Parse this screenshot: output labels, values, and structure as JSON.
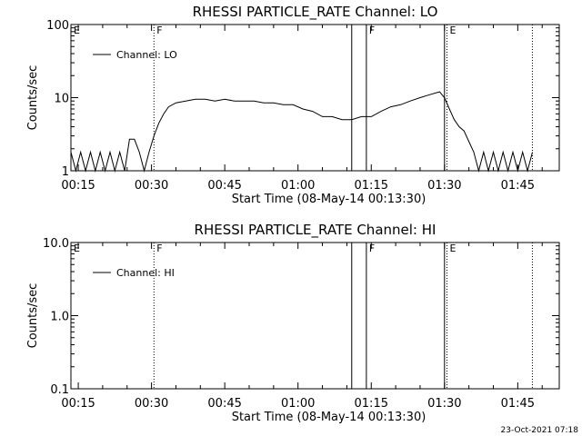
{
  "chart_data": [
    {
      "type": "line",
      "title": "RHESSI PARTICLE_RATE Channel: LO",
      "ylabel": "Counts/sec",
      "xlabel": "Start Time (08-May-14 00:13:30)",
      "y_scale": "log",
      "xlim": [
        "00:13:30",
        "01:53:30"
      ],
      "ylim": [
        1,
        100
      ],
      "x_ticks": [
        "00:15",
        "00:30",
        "00:45",
        "01:00",
        "01:15",
        "01:30",
        "01:45"
      ],
      "y_ticks": [
        "1",
        "10",
        "100"
      ],
      "legend": "Channel: LO",
      "legend_position": "top-left",
      "flags": [
        {
          "label": "E",
          "time": "00:13:30",
          "style": "none"
        },
        {
          "label": "F",
          "time": "00:30:30",
          "style": "dotted"
        },
        {
          "label": "",
          "time": "01:11:00",
          "style": "solid"
        },
        {
          "label": "F",
          "time": "01:14:00",
          "style": "solid"
        },
        {
          "label": "E",
          "time": "01:30:30",
          "style": "dotted"
        },
        {
          "label": "",
          "time": "01:30:00",
          "style": "solid"
        },
        {
          "label": "",
          "time": "01:48:00",
          "style": "dotted"
        }
      ],
      "series": [
        {
          "name": "Channel: LO",
          "x": [
            "00:13:30",
            "00:14:30",
            "00:15:30",
            "00:16:30",
            "00:17:30",
            "00:18:30",
            "00:19:30",
            "00:20:30",
            "00:21:30",
            "00:22:30",
            "00:23:30",
            "00:24:30",
            "00:25:30",
            "00:26:30",
            "00:27:30",
            "00:28:30",
            "00:29:30",
            "00:30:30",
            "00:31:30",
            "00:32:30",
            "00:33:30",
            "00:35:00",
            "00:37:00",
            "00:39:00",
            "00:41:00",
            "00:43:00",
            "00:45:00",
            "00:47:00",
            "00:49:00",
            "00:51:00",
            "00:53:00",
            "00:55:00",
            "00:57:00",
            "00:59:00",
            "01:01:00",
            "01:03:00",
            "01:05:00",
            "01:07:00",
            "01:09:00",
            "01:11:00",
            "01:13:00",
            "01:15:00",
            "01:17:00",
            "01:19:00",
            "01:21:00",
            "01:23:00",
            "01:25:00",
            "01:27:00",
            "01:29:00",
            "01:30:00",
            "01:31:00",
            "01:32:00",
            "01:33:00",
            "01:34:00",
            "01:35:00",
            "01:36:00",
            "01:37:00",
            "01:38:00",
            "01:39:00",
            "01:40:00",
            "01:41:00",
            "01:42:00",
            "01:43:00",
            "01:44:00",
            "01:45:00",
            "01:46:00",
            "01:47:00",
            "01:48:00"
          ],
          "y": [
            1.8,
            1,
            1.8,
            1,
            1.8,
            1,
            1.8,
            1,
            1.8,
            1,
            1.8,
            1,
            2.7,
            2.7,
            1.8,
            1,
            1.8,
            3,
            4.5,
            6,
            7.5,
            8.5,
            9,
            9.5,
            9.5,
            9,
            9.5,
            9,
            9,
            9,
            8.5,
            8.5,
            8,
            8,
            7,
            6.5,
            5.5,
            5.5,
            5,
            5,
            5.5,
            5.5,
            6.5,
            7.5,
            8,
            9,
            10,
            11,
            12,
            10,
            7,
            5,
            4,
            3.5,
            2.5,
            1.8,
            1,
            1.8,
            1,
            1.8,
            1,
            1.8,
            1,
            1.8,
            1,
            1.8,
            1,
            1.8
          ]
        }
      ]
    },
    {
      "type": "line",
      "title": "RHESSI PARTICLE_RATE Channel: HI",
      "ylabel": "Counts/sec",
      "xlabel": "Start Time (08-May-14 00:13:30)",
      "y_scale": "log",
      "xlim": [
        "00:13:30",
        "01:53:30"
      ],
      "ylim": [
        0.1,
        10.0
      ],
      "x_ticks": [
        "00:15",
        "00:30",
        "00:45",
        "01:00",
        "01:15",
        "01:30",
        "01:45"
      ],
      "y_ticks": [
        "0.1",
        "1.0",
        "10.0"
      ],
      "legend": "Channel: HI",
      "legend_position": "top-left",
      "flags": [
        {
          "label": "E",
          "time": "00:13:30",
          "style": "none"
        },
        {
          "label": "F",
          "time": "00:30:30",
          "style": "dotted"
        },
        {
          "label": "",
          "time": "01:11:00",
          "style": "solid"
        },
        {
          "label": "F",
          "time": "01:14:00",
          "style": "solid"
        },
        {
          "label": "E",
          "time": "01:30:30",
          "style": "dotted"
        },
        {
          "label": "",
          "time": "01:30:00",
          "style": "solid"
        },
        {
          "label": "",
          "time": "01:48:00",
          "style": "dotted"
        }
      ],
      "series": []
    }
  ],
  "footer": {
    "timestamp": "23-Oct-2021 07:18"
  }
}
